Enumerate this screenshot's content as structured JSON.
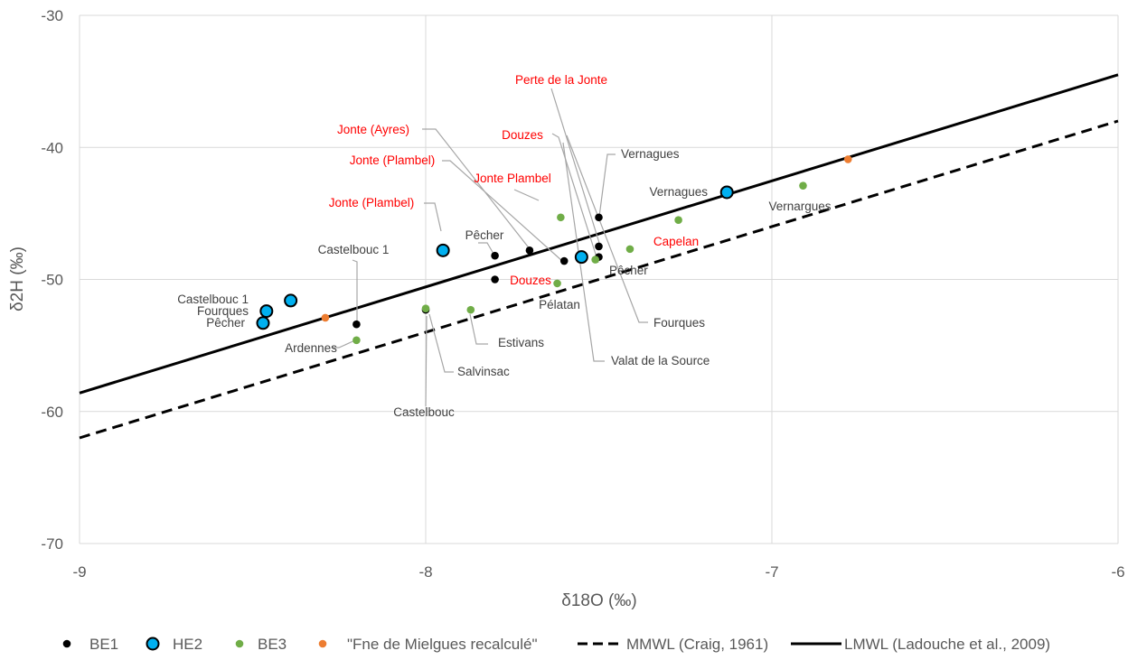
{
  "chart_data": {
    "type": "scatter",
    "title": "",
    "xlabel": "δ18O (‰)",
    "ylabel": "δ2H (‰)",
    "xlim": [
      -9,
      -6
    ],
    "ylim": [
      -70,
      -30
    ],
    "x_ticks": [
      -9,
      -8,
      -7,
      -6
    ],
    "y_ticks": [
      -70,
      -60,
      -50,
      -40,
      -30
    ],
    "x_tick_labels": [
      "-9",
      "-8",
      "-7",
      "-6"
    ],
    "y_tick_labels": [
      "-70",
      "-60",
      "-50",
      "-40",
      "-30"
    ],
    "grid": true,
    "legend_position": "bottom",
    "series": [
      {
        "name": "BE1",
        "marker": "dot-small",
        "color": "#000000",
        "points": [
          {
            "x": -8.2,
            "y": -53.4,
            "label": "Castelbouc 1"
          },
          {
            "x": -8.0,
            "y": -52.3,
            "label": "Castelbouc"
          },
          {
            "x": -7.8,
            "y": -48.2,
            "label": "Pêcher"
          },
          {
            "x": -7.8,
            "y": -50.0,
            "label": ""
          },
          {
            "x": -7.7,
            "y": -47.8,
            "label": "Jonte (Ayres)"
          },
          {
            "x": -7.6,
            "y": -48.6,
            "label": "Jonte (Plambel)"
          },
          {
            "x": -7.5,
            "y": -45.3,
            "label": "Vernagues"
          },
          {
            "x": -7.5,
            "y": -47.5,
            "label": "Perte de la Jonte"
          },
          {
            "x": -7.5,
            "y": -48.3,
            "label": "Douzes"
          }
        ]
      },
      {
        "name": "HE2",
        "marker": "dot-large",
        "color": "#00b0f0",
        "points": [
          {
            "x": -8.39,
            "y": -51.6,
            "label": "Castelbouc 1"
          },
          {
            "x": -8.46,
            "y": -52.4,
            "label": "Fourques"
          },
          {
            "x": -8.47,
            "y": -53.3,
            "label": "Pêcher"
          },
          {
            "x": -7.95,
            "y": -47.8,
            "label": "Jonte (Plambel)"
          },
          {
            "x": -7.55,
            "y": -48.3,
            "label": ""
          },
          {
            "x": -7.13,
            "y": -43.4,
            "label": "Vernagues"
          }
        ]
      },
      {
        "name": "BE3",
        "marker": "dot-small",
        "color": "#70ad47",
        "points": [
          {
            "x": -8.2,
            "y": -54.6,
            "label": "Ardennes"
          },
          {
            "x": -8.0,
            "y": -52.2,
            "label": "Salvinsac"
          },
          {
            "x": -7.87,
            "y": -52.3,
            "label": "Estivans"
          },
          {
            "x": -7.62,
            "y": -50.3,
            "label": "Pélatan"
          },
          {
            "x": -7.61,
            "y": -45.3,
            "label": "Jonte Plambel"
          },
          {
            "x": -7.51,
            "y": -48.5,
            "label": "Pêcher"
          },
          {
            "x": -7.41,
            "y": -47.7,
            "label": "Douzes"
          },
          {
            "x": -7.27,
            "y": -45.5,
            "label": "Capelan"
          },
          {
            "x": -6.91,
            "y": -42.9,
            "label": "Vernargues"
          }
        ]
      },
      {
        "name": "\"Fne de Mielgues recalculé\"",
        "marker": "dot-small",
        "color": "#ed7d31",
        "points": [
          {
            "x": -8.29,
            "y": -52.9,
            "label": ""
          },
          {
            "x": -6.78,
            "y": -40.9,
            "label": ""
          }
        ]
      }
    ],
    "lines": [
      {
        "name": "MMWL (Craig, 1961)",
        "style": "dashed",
        "color": "#000000",
        "points": [
          [
            -9,
            -62.0
          ],
          [
            -6,
            -38.0
          ]
        ]
      },
      {
        "name": "LMWL (Ladouche et al., 2009)",
        "style": "solid",
        "color": "#000000",
        "points": [
          [
            -9,
            -58.6
          ],
          [
            -6,
            -34.5
          ]
        ]
      }
    ],
    "annotations": [
      {
        "text": "Perte de la Jonte",
        "color": "#ff0000"
      },
      {
        "text": "Jonte (Ayres)",
        "color": "#ff0000"
      },
      {
        "text": "Douzes",
        "color": "#ff0000"
      },
      {
        "text": "Vernagues",
        "color": "#404040"
      },
      {
        "text": "Jonte (Plambel)",
        "color": "#ff0000"
      },
      {
        "text": "Jonte Plambel",
        "color": "#ff0000"
      },
      {
        "text": "Vernagues",
        "color": "#404040"
      },
      {
        "text": "Vernargues",
        "color": "#404040"
      },
      {
        "text": "Jonte (Plambel)",
        "color": "#ff0000"
      },
      {
        "text": "Pêcher",
        "color": "#404040"
      },
      {
        "text": "Castelbouc 1",
        "color": "#404040"
      },
      {
        "text": "Capelan",
        "color": "#ff0000"
      },
      {
        "text": "Pêcher",
        "color": "#404040"
      },
      {
        "text": "Douzes",
        "color": "#ff0000"
      },
      {
        "text": "Castelbouc 1",
        "color": "#404040"
      },
      {
        "text": "Pélatan",
        "color": "#404040"
      },
      {
        "text": "Fourques",
        "color": "#404040"
      },
      {
        "text": "Pêcher",
        "color": "#404040"
      },
      {
        "text": "Fourques",
        "color": "#404040"
      },
      {
        "text": "Ardennes",
        "color": "#404040"
      },
      {
        "text": "Estivans",
        "color": "#404040"
      },
      {
        "text": "Valat de la Source",
        "color": "#404040"
      },
      {
        "text": "Salvinsac",
        "color": "#404040"
      },
      {
        "text": "Castelbouc",
        "color": "#404040"
      }
    ],
    "legend": [
      {
        "name": "BE1",
        "kind": "dot-small",
        "color": "#000000"
      },
      {
        "name": "HE2",
        "kind": "dot-large",
        "color": "#00b0f0"
      },
      {
        "name": "BE3",
        "kind": "dot-small",
        "color": "#70ad47"
      },
      {
        "name": "\"Fne de Mielgues recalculé\"",
        "kind": "dot-small",
        "color": "#ed7d31"
      },
      {
        "name": "MMWL (Craig, 1961)",
        "kind": "dashed",
        "color": "#000000"
      },
      {
        "name": "LMWL (Ladouche et al., 2009)",
        "kind": "solid",
        "color": "#000000"
      }
    ]
  }
}
